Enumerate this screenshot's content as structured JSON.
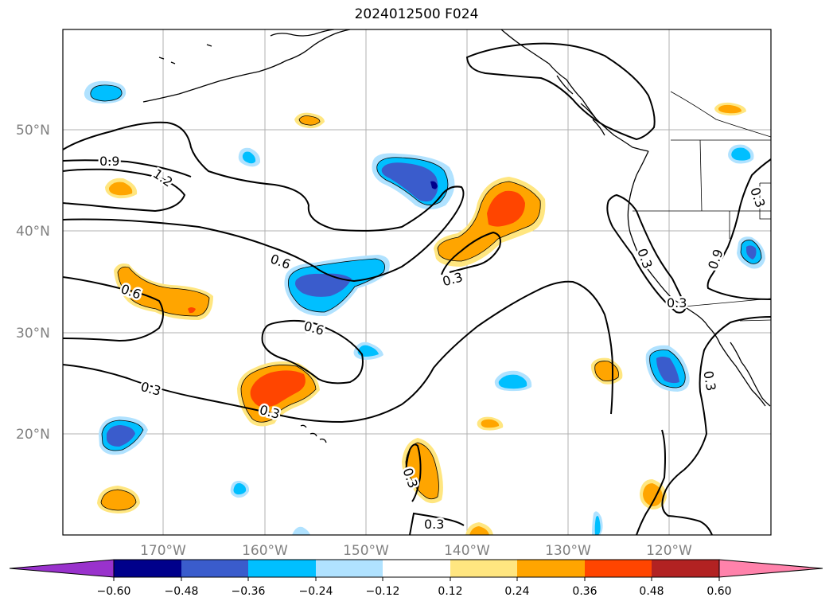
{
  "title": "2024012500 F024",
  "lat_labels": [
    "50°N",
    "40°N",
    "30°N",
    "20°N"
  ],
  "lon_labels": [
    "170°W",
    "160°W",
    "150°W",
    "140°W",
    "130°W",
    "120°W"
  ],
  "contour_labels": [
    "0.9",
    "1.2",
    "0.6",
    "0.6",
    "0.6",
    "0.3",
    "0.3",
    "0.3",
    "0.3",
    "0.3",
    "0.3",
    "0.9",
    "0.3",
    "0.3",
    "0.3"
  ],
  "colorbar": {
    "ticks": [
      "−0.60",
      "−0.48",
      "−0.36",
      "−0.24",
      "−0.12",
      "0.12",
      "0.24",
      "0.36",
      "0.48",
      "0.60"
    ],
    "colors": [
      "#9932cc",
      "#00008b",
      "#3a5ccc",
      "#00bfff",
      "#b0e2ff",
      "#ffffff",
      "#ffe680",
      "#ffa500",
      "#ff4500",
      "#b22222",
      "#ff82ab"
    ]
  },
  "colors": {
    "neg_light": "#b0e2ff",
    "neg_mid": "#00bfff",
    "neg_strong": "#3a5ccc",
    "neg_max": "#00008b",
    "pos_light": "#ffe680",
    "pos_mid": "#ffa500",
    "pos_strong": "#ff4500",
    "pos_max": "#b22222"
  }
}
